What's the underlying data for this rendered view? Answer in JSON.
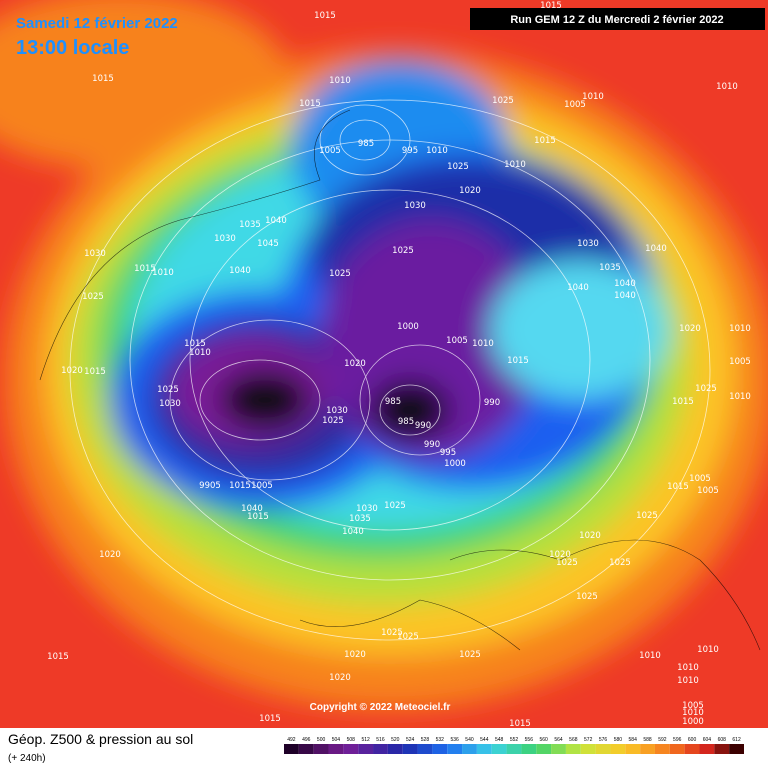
{
  "header": {
    "date": "Samedi 12 février 2022",
    "time": "13:00 locale",
    "run": "Run GEM 12 Z du Mercredi 2 février 2022"
  },
  "map": {
    "copyright": "Copyright © 2022 Meteociel.fr",
    "pressure_labels": [
      "1015",
      "1010",
      "1015",
      "1015",
      "1025",
      "1005",
      "1010",
      "1010",
      "1015",
      "985",
      "995",
      "1010",
      "1005",
      "1025",
      "1010",
      "1020",
      "1030",
      "1040",
      "1035",
      "1030",
      "1045",
      "1030",
      "1025",
      "1040",
      "1030",
      "1015",
      "1010",
      "1040",
      "1025",
      "1035",
      "1040",
      "1040",
      "1040",
      "1025",
      "1000",
      "1020",
      "1010",
      "1015",
      "1010",
      "1005",
      "1010",
      "1015",
      "1020",
      "1020",
      "1015",
      "1005",
      "1025",
      "1030",
      "1025",
      "1010",
      "1015",
      "985",
      "990",
      "1030",
      "1025",
      "985",
      "990",
      "990",
      "995",
      "1000",
      "9905",
      "1015",
      "1005",
      "1005",
      "1015",
      "1005",
      "1025",
      "1030",
      "1040",
      "1015",
      "1035",
      "1025",
      "1040",
      "1020",
      "1020",
      "1020",
      "1025",
      "1025",
      "1025",
      "1025",
      "1025",
      "1020",
      "1025",
      "1015",
      "1010",
      "1010",
      "1010",
      "1010",
      "1020",
      "1005",
      "1010",
      "1000",
      "1015",
      "1015",
      "1015"
    ]
  },
  "footer": {
    "title": "Géop. Z500 & pression au sol",
    "subtitle": "(+ 240h)",
    "scale": [
      492,
      496,
      500,
      504,
      508,
      512,
      516,
      520,
      524,
      528,
      532,
      536,
      540,
      544,
      548,
      552,
      556,
      560,
      564,
      568,
      572,
      576,
      580,
      584,
      588,
      592,
      596,
      600,
      604,
      608,
      612
    ]
  }
}
